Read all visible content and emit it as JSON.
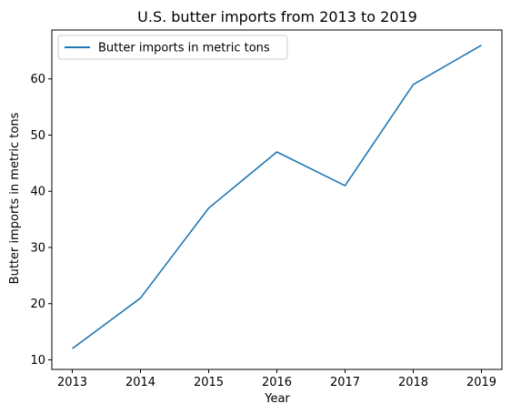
{
  "chart_data": {
    "type": "line",
    "title": "U.S. butter imports from 2013 to 2019",
    "xlabel": "Year",
    "ylabel": "Butter imports in metric tons",
    "x": [
      2013,
      2014,
      2015,
      2016,
      2017,
      2018,
      2019
    ],
    "x_ticks": [
      "2013",
      "2014",
      "2015",
      "2016",
      "2017",
      "2018",
      "2019"
    ],
    "y_ticks": [
      10,
      20,
      30,
      40,
      50,
      60
    ],
    "ylim": [
      8.3,
      68.7
    ],
    "xlim": [
      2012.7,
      2019.3
    ],
    "series": [
      {
        "name": "Butter imports in metric tons",
        "values": [
          12,
          21,
          37,
          47,
          41,
          59,
          66
        ],
        "color": "#1f77b4"
      }
    ],
    "legend": "top-left",
    "grid": false
  }
}
